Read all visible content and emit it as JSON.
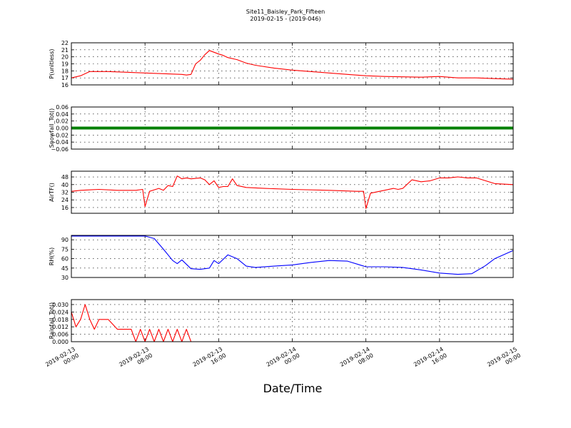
{
  "chart_data": {
    "type": "line",
    "title": "Site11_Baisley_Park_Fifteen",
    "subtitle": "2019-02-15 - (2019-046)",
    "xlabel": "Date/Time",
    "x_ticks": [
      "2019-02-13\n00:00",
      "2019-02-13\n08:00",
      "2019-02-13\n16:00",
      "2019-02-14\n00:00",
      "2019-02-14\n08:00",
      "2019-02-14\n16:00",
      "2019-02-15\n00:00"
    ],
    "xlim": [
      "2019-02-13 00:00",
      "2019-02-15 00:00"
    ],
    "grid": true,
    "panels": [
      {
        "ylabel": "P(unitless)",
        "color": "#ff0000",
        "ylim": [
          16,
          22
        ],
        "yticks": [
          "16",
          "17",
          "18",
          "19",
          "20",
          "21",
          "22"
        ],
        "series": [
          {
            "x": [
              "2019-02-13 00:00",
              "2019-02-13 01:00",
              "2019-02-13 02:00",
              "2019-02-13 04:00",
              "2019-02-13 06:00",
              "2019-02-13 08:00",
              "2019-02-13 10:00",
              "2019-02-13 12:00",
              "2019-02-13 12:30",
              "2019-02-13 13:00",
              "2019-02-13 13:30",
              "2019-02-13 14:00",
              "2019-02-13 14:30",
              "2019-02-13 15:00",
              "2019-02-13 16:00",
              "2019-02-13 16:30",
              "2019-02-13 17:00",
              "2019-02-13 18:00",
              "2019-02-13 19:00",
              "2019-02-13 20:00",
              "2019-02-13 22:00",
              "2019-02-14 00:00",
              "2019-02-14 02:00",
              "2019-02-14 04:00",
              "2019-02-14 06:00",
              "2019-02-14 08:00",
              "2019-02-14 10:00",
              "2019-02-14 12:00",
              "2019-02-14 14:00",
              "2019-02-14 16:00",
              "2019-02-14 18:00",
              "2019-02-14 20:00",
              "2019-02-14 22:00",
              "2019-02-15 00:00"
            ],
            "y": [
              17.0,
              17.3,
              17.9,
              17.9,
              17.8,
              17.7,
              17.6,
              17.5,
              17.4,
              17.5,
              19.0,
              19.5,
              20.3,
              20.9,
              20.4,
              20.2,
              19.9,
              19.6,
              19.1,
              18.8,
              18.4,
              18.1,
              17.9,
              17.7,
              17.5,
              17.3,
              17.2,
              17.15,
              17.1,
              17.2,
              17.0,
              17.0,
              16.9,
              16.8
            ]
          }
        ]
      },
      {
        "ylabel": "Snowfall_Tot()",
        "color": "#008000",
        "ylim": [
          -0.06,
          0.06
        ],
        "yticks": [
          "−0.06",
          "−0.04",
          "−0.02",
          "0.00",
          "0.02",
          "0.04",
          "0.06"
        ],
        "series": [
          {
            "x": [
              "2019-02-13 00:00",
              "2019-02-15 00:00"
            ],
            "y": [
              0.0,
              0.0
            ]
          }
        ]
      },
      {
        "ylabel": "AirTF()",
        "color": "#ff0000",
        "ylim": [
          10,
          54
        ],
        "yticks": [
          "16",
          "24",
          "32",
          "40",
          "48"
        ],
        "series": [
          {
            "x": [
              "2019-02-13 00:00",
              "2019-02-13 01:00",
              "2019-02-13 03:00",
              "2019-02-13 05:00",
              "2019-02-13 07:00",
              "2019-02-13 07:45",
              "2019-02-13 08:00",
              "2019-02-13 08:30",
              "2019-02-13 09:30",
              "2019-02-13 10:00",
              "2019-02-13 10:30",
              "2019-02-13 11:00",
              "2019-02-13 11:30",
              "2019-02-13 12:00",
              "2019-02-13 12:30",
              "2019-02-13 13:00",
              "2019-02-13 14:00",
              "2019-02-13 14:30",
              "2019-02-13 15:00",
              "2019-02-13 15:30",
              "2019-02-13 16:00",
              "2019-02-13 16:30",
              "2019-02-13 17:00",
              "2019-02-13 17:30",
              "2019-02-13 18:00",
              "2019-02-13 19:00",
              "2019-02-13 21:00",
              "2019-02-14 00:00",
              "2019-02-14 04:00",
              "2019-02-14 07:00",
              "2019-02-14 07:45",
              "2019-02-14 08:00",
              "2019-02-14 08:30",
              "2019-02-14 10:00",
              "2019-02-14 11:00",
              "2019-02-14 11:30",
              "2019-02-14 12:00",
              "2019-02-14 13:00",
              "2019-02-14 14:00",
              "2019-02-14 15:00",
              "2019-02-14 16:00",
              "2019-02-14 17:00",
              "2019-02-14 18:00",
              "2019-02-14 19:00",
              "2019-02-14 20:00",
              "2019-02-14 22:00",
              "2019-02-15 00:00"
            ],
            "y": [
              33,
              34,
              35,
              34,
              34,
              35,
              17,
              33,
              36,
              34,
              39,
              38,
              49,
              46,
              47,
              46,
              47,
              45,
              40,
              44,
              37,
              38,
              38,
              46,
              39,
              37,
              36,
              35,
              34,
              33,
              33,
              15,
              31,
              34,
              36,
              35,
              36,
              45,
              43,
              44,
              47,
              47,
              48,
              47,
              47,
              41,
              40
            ]
          }
        ]
      },
      {
        "ylabel": "RH(%)",
        "color": "#0000ff",
        "ylim": [
          30,
          97
        ],
        "yticks": [
          "30",
          "45",
          "60",
          "75",
          "90"
        ],
        "series": [
          {
            "x": [
              "2019-02-13 00:00",
              "2019-02-13 03:00",
              "2019-02-13 06:00",
              "2019-02-13 08:00",
              "2019-02-13 09:00",
              "2019-02-13 10:00",
              "2019-02-13 11:00",
              "2019-02-13 11:30",
              "2019-02-13 12:00",
              "2019-02-13 13:00",
              "2019-02-13 14:00",
              "2019-02-13 15:00",
              "2019-02-13 15:30",
              "2019-02-13 16:00",
              "2019-02-13 17:00",
              "2019-02-13 18:00",
              "2019-02-13 19:00",
              "2019-02-13 20:00",
              "2019-02-13 22:00",
              "2019-02-14 00:00",
              "2019-02-14 02:00",
              "2019-02-14 04:00",
              "2019-02-14 06:00",
              "2019-02-14 08:00",
              "2019-02-14 10:00",
              "2019-02-14 12:00",
              "2019-02-14 14:00",
              "2019-02-14 16:00",
              "2019-02-14 18:00",
              "2019-02-14 19:30",
              "2019-02-14 21:00",
              "2019-02-14 22:00",
              "2019-02-15 00:00"
            ],
            "y": [
              96,
              96,
              96,
              96,
              92,
              75,
              57,
              52,
              58,
              44,
              43,
              45,
              57,
              52,
              66,
              60,
              48,
              46,
              48,
              50,
              54,
              57,
              56,
              47,
              47,
              46,
              42,
              37,
              35,
              36,
              49,
              60,
              73
            ]
          }
        ]
      },
      {
        "ylabel": "Rainfall_Tot()",
        "color": "#ff0000",
        "ylim": [
          0,
          0.034
        ],
        "yticks": [
          "0.000",
          "0.006",
          "0.012",
          "0.018",
          "0.024",
          "0.030"
        ],
        "series": [
          {
            "x": [
              "2019-02-13 00:00",
              "2019-02-13 00:30",
              "2019-02-13 01:00",
              "2019-02-13 01:30",
              "2019-02-13 02:00",
              "2019-02-13 02:30",
              "2019-02-13 03:00",
              "2019-02-13 04:00",
              "2019-02-13 05:00",
              "2019-02-13 06:00",
              "2019-02-13 06:30",
              "2019-02-13 07:00",
              "2019-02-13 07:30",
              "2019-02-13 08:00",
              "2019-02-13 08:30",
              "2019-02-13 09:00",
              "2019-02-13 09:30",
              "2019-02-13 10:00",
              "2019-02-13 10:30",
              "2019-02-13 11:00",
              "2019-02-13 11:30",
              "2019-02-13 12:00",
              "2019-02-13 12:30",
              "2019-02-13 13:00",
              "2019-02-13 16:00",
              "2019-02-14 00:00",
              "2019-02-14 08:00",
              "2019-02-14 16:00",
              "2019-02-15 00:00"
            ],
            "y": [
              0.024,
              0.012,
              0.018,
              0.03,
              0.018,
              0.01,
              0.018,
              0.018,
              0.01,
              0.01,
              0.01,
              0.0,
              0.01,
              0.0,
              0.01,
              0.0,
              0.01,
              0.0,
              0.01,
              0.0,
              0.01,
              0.0,
              0.01,
              0.0,
              0.0,
              0.0,
              0.0,
              0.0,
              0.0
            ]
          }
        ]
      }
    ]
  }
}
